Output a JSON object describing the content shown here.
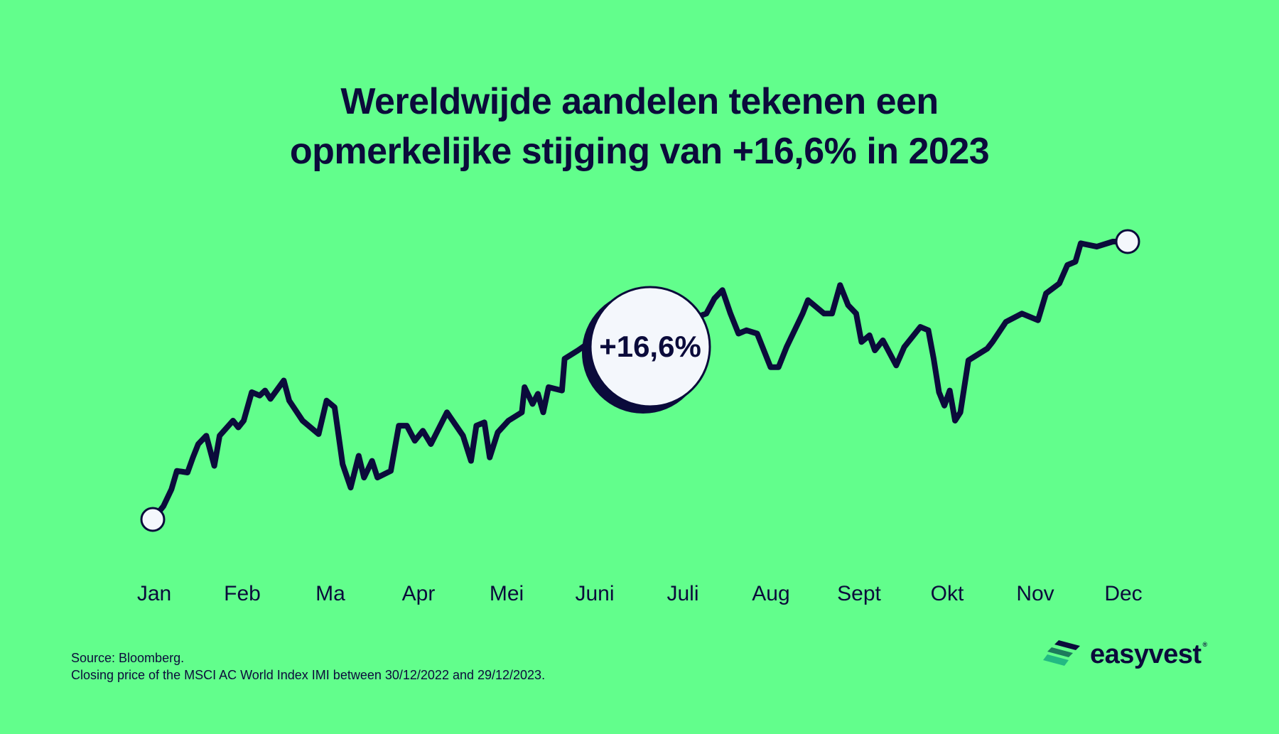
{
  "title": {
    "line1": "Wereldwijde aandelen tekenen een",
    "line2": "opmerkelijke stijging van +16,6% in 2023"
  },
  "source": {
    "line1": "Source: Bloomberg.",
    "line2": "Closing price of the MSCI AC World Index IMI between 30/12/2022 and 29/12/2023."
  },
  "logo": {
    "text": "easyvest",
    "mark": "®"
  },
  "colors": {
    "background": "#62fe8c",
    "line": "#0b0b3b",
    "marker": "#f4f7fc",
    "logo_dark": "#0b0b3b",
    "logo_green": "#1fb07c"
  },
  "chart_data": {
    "type": "line",
    "title": "Wereldwijde aandelen tekenen een opmerkelijke stijging van +16,6% in 2023",
    "xlabel": "",
    "ylabel": "",
    "y_axis_shown": false,
    "grid": false,
    "y_note": "relative level, start = 100",
    "annotation": "+16,6%",
    "x_tick_labels": [
      "Jan",
      "Feb",
      "Ma",
      "Apr",
      "Mei",
      "Juni",
      "Juli",
      "Aug",
      "Sept",
      "Okt",
      "Nov",
      "Dec"
    ],
    "xlim": [
      "2022-12-30",
      "2023-12-29"
    ],
    "ylim": [
      100,
      116.6
    ],
    "series": [
      {
        "x": [
          "2022-12-30",
          "2023-01-03",
          "2023-01-06",
          "2023-01-08",
          "2023-01-12",
          "2023-01-14",
          "2023-01-16",
          "2023-01-19",
          "2023-01-22",
          "2023-01-24",
          "2023-01-29",
          "2023-01-31",
          "2023-02-02",
          "2023-02-05",
          "2023-02-08",
          "2023-02-10",
          "2023-02-12",
          "2023-02-17",
          "2023-02-19",
          "2023-02-24",
          "2023-03-02",
          "2023-03-05",
          "2023-03-08",
          "2023-03-11",
          "2023-03-14",
          "2023-03-17",
          "2023-03-19",
          "2023-03-22",
          "2023-03-24",
          "2023-03-29",
          "2023-04-01",
          "2023-04-04",
          "2023-04-07",
          "2023-04-10",
          "2023-04-13",
          "2023-04-19",
          "2023-04-25",
          "2023-04-28",
          "2023-04-30",
          "2023-05-03",
          "2023-05-05",
          "2023-05-08",
          "2023-05-12",
          "2023-05-17",
          "2023-05-18",
          "2023-05-21",
          "2023-05-23",
          "2023-05-25",
          "2023-05-27",
          "2023-06-01",
          "2023-06-02",
          "2023-06-07",
          "2023-06-16",
          "2023-07-05",
          "2023-07-20",
          "2023-07-25",
          "2023-07-28",
          "2023-07-31",
          "2023-08-03",
          "2023-08-06",
          "2023-08-09",
          "2023-08-13",
          "2023-08-18",
          "2023-08-21",
          "2023-08-24",
          "2023-08-30",
          "2023-09-01",
          "2023-09-07",
          "2023-09-10",
          "2023-09-13",
          "2023-09-16",
          "2023-09-19",
          "2023-09-21",
          "2023-09-24",
          "2023-09-26",
          "2023-09-29",
          "2023-10-04",
          "2023-10-07",
          "2023-10-13",
          "2023-10-16",
          "2023-10-18",
          "2023-10-20",
          "2023-10-22",
          "2023-10-24",
          "2023-10-26",
          "2023-10-28",
          "2023-10-31",
          "2023-11-07",
          "2023-11-09",
          "2023-11-14",
          "2023-11-20",
          "2023-11-26",
          "2023-11-29",
          "2023-12-04",
          "2023-12-07",
          "2023-12-10",
          "2023-12-12",
          "2023-12-18",
          "2023-12-24",
          "2023-12-29"
        ],
        "values": [
          100.0,
          100.8,
          101.8,
          102.9,
          102.8,
          103.7,
          104.5,
          105.0,
          103.2,
          105.0,
          105.9,
          105.5,
          105.9,
          107.6,
          107.4,
          107.7,
          107.2,
          108.3,
          107.1,
          105.9,
          105.1,
          107.1,
          106.7,
          103.3,
          101.9,
          103.8,
          102.5,
          103.5,
          102.5,
          102.9,
          105.6,
          105.6,
          104.7,
          105.3,
          104.5,
          106.4,
          105.0,
          103.5,
          105.6,
          105.8,
          103.7,
          105.2,
          105.9,
          106.4,
          107.9,
          106.9,
          107.5,
          106.4,
          107.9,
          107.7,
          109.6,
          110.1,
          111.1,
          111.8,
          112.0,
          112.3,
          113.2,
          113.7,
          112.3,
          111.1,
          111.3,
          111.1,
          109.1,
          109.1,
          110.3,
          112.3,
          113.1,
          112.3,
          112.3,
          114.0,
          112.8,
          112.3,
          110.6,
          111.0,
          110.1,
          110.7,
          109.2,
          110.3,
          111.5,
          111.3,
          109.6,
          107.6,
          106.8,
          107.7,
          105.9,
          106.4,
          109.5,
          110.2,
          110.6,
          111.8,
          112.3,
          111.9,
          113.5,
          114.1,
          115.2,
          115.4,
          116.5,
          116.3,
          116.6,
          116.6
        ]
      }
    ]
  }
}
